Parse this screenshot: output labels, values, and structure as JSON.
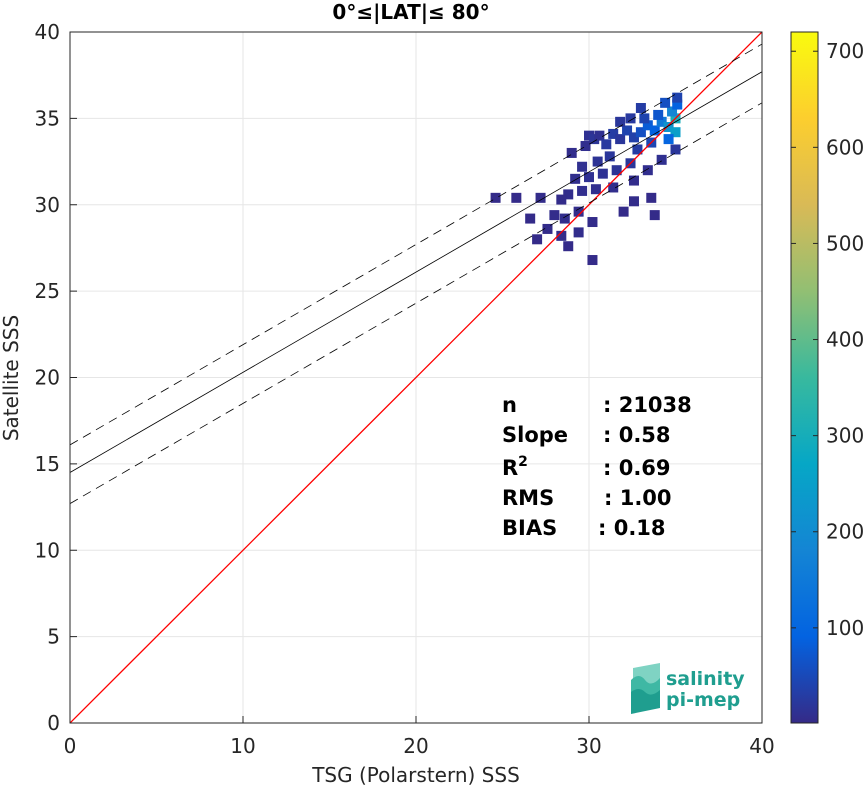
{
  "chart_data": {
    "type": "scatter",
    "title": "0°≤|LAT|≤ 80°",
    "xlabel": "TSG (Polarstern) SSS",
    "ylabel": "Satellite SSS",
    "xlim": [
      0,
      40
    ],
    "ylim": [
      0,
      40
    ],
    "xticks": [
      0,
      10,
      20,
      30,
      40
    ],
    "yticks": [
      0,
      5,
      10,
      15,
      20,
      25,
      30,
      35,
      40
    ],
    "grid": true,
    "colorbar": {
      "ticks": [
        100,
        200,
        300,
        400,
        500,
        600,
        700
      ],
      "range": [
        1,
        720
      ],
      "colormap": "parula",
      "colors": [
        "#352a87",
        "#0363e1",
        "#1485d4",
        "#06a7c6",
        "#38b99e",
        "#92bf73",
        "#d9ba56",
        "#fcce2e",
        "#f9fb0e"
      ]
    },
    "lines": [
      {
        "name": "1:1",
        "slope": 1,
        "intercept": 0,
        "color": "#ff0000",
        "style": "solid"
      },
      {
        "name": "fit",
        "slope": 0.58,
        "intercept": 14.5,
        "color": "#000000",
        "style": "solid"
      },
      {
        "name": "fit+",
        "slope": 0.58,
        "intercept": 16.1,
        "color": "#000000",
        "style": "dashed"
      },
      {
        "name": "fit-",
        "slope": 0.58,
        "intercept": 12.7,
        "color": "#000000",
        "style": "dashed"
      }
    ],
    "density_cells": [
      {
        "x": 30.0,
        "y": 34.0,
        "v": 12
      },
      {
        "x": 30.3,
        "y": 33.8,
        "v": 18
      },
      {
        "x": 30.6,
        "y": 34.0,
        "v": 10
      },
      {
        "x": 31.0,
        "y": 33.5,
        "v": 25
      },
      {
        "x": 31.4,
        "y": 34.1,
        "v": 30
      },
      {
        "x": 31.8,
        "y": 33.8,
        "v": 20
      },
      {
        "x": 32.2,
        "y": 34.3,
        "v": 40
      },
      {
        "x": 32.6,
        "y": 33.9,
        "v": 35
      },
      {
        "x": 33.0,
        "y": 34.2,
        "v": 60
      },
      {
        "x": 33.4,
        "y": 34.6,
        "v": 80
      },
      {
        "x": 33.8,
        "y": 34.3,
        "v": 90
      },
      {
        "x": 34.2,
        "y": 34.8,
        "v": 150
      },
      {
        "x": 34.6,
        "y": 34.5,
        "v": 220
      },
      {
        "x": 35.0,
        "y": 35.0,
        "v": 300
      },
      {
        "x": 34.8,
        "y": 35.4,
        "v": 180
      },
      {
        "x": 35.1,
        "y": 35.8,
        "v": 90
      },
      {
        "x": 34.0,
        "y": 35.2,
        "v": 70
      },
      {
        "x": 33.2,
        "y": 35.0,
        "v": 40
      },
      {
        "x": 32.4,
        "y": 35.0,
        "v": 25
      },
      {
        "x": 35.0,
        "y": 34.2,
        "v": 250
      },
      {
        "x": 34.6,
        "y": 33.8,
        "v": 100
      },
      {
        "x": 33.6,
        "y": 33.6,
        "v": 45
      },
      {
        "x": 32.8,
        "y": 33.2,
        "v": 30
      },
      {
        "x": 31.2,
        "y": 32.8,
        "v": 20
      },
      {
        "x": 30.5,
        "y": 32.5,
        "v": 15
      },
      {
        "x": 29.6,
        "y": 32.2,
        "v": 10
      },
      {
        "x": 30.0,
        "y": 31.6,
        "v": 12
      },
      {
        "x": 30.8,
        "y": 31.8,
        "v": 14
      },
      {
        "x": 31.6,
        "y": 32.0,
        "v": 16
      },
      {
        "x": 32.4,
        "y": 32.4,
        "v": 20
      },
      {
        "x": 29.2,
        "y": 31.5,
        "v": 8
      },
      {
        "x": 28.8,
        "y": 30.6,
        "v": 6
      },
      {
        "x": 29.6,
        "y": 30.8,
        "v": 8
      },
      {
        "x": 30.4,
        "y": 30.9,
        "v": 9
      },
      {
        "x": 31.4,
        "y": 31.0,
        "v": 7
      },
      {
        "x": 32.6,
        "y": 31.4,
        "v": 6
      },
      {
        "x": 33.4,
        "y": 32.0,
        "v": 8
      },
      {
        "x": 34.2,
        "y": 32.6,
        "v": 10
      },
      {
        "x": 35.0,
        "y": 33.2,
        "v": 20
      },
      {
        "x": 28.0,
        "y": 29.4,
        "v": 5
      },
      {
        "x": 28.6,
        "y": 29.2,
        "v": 6
      },
      {
        "x": 29.4,
        "y": 29.6,
        "v": 5
      },
      {
        "x": 27.6,
        "y": 28.6,
        "v": 4
      },
      {
        "x": 28.4,
        "y": 28.2,
        "v": 5
      },
      {
        "x": 29.4,
        "y": 28.4,
        "v": 6
      },
      {
        "x": 30.2,
        "y": 29.0,
        "v": 4
      },
      {
        "x": 26.6,
        "y": 29.2,
        "v": 3
      },
      {
        "x": 27.0,
        "y": 28.0,
        "v": 3
      },
      {
        "x": 24.6,
        "y": 30.4,
        "v": 3
      },
      {
        "x": 25.8,
        "y": 30.4,
        "v": 3
      },
      {
        "x": 27.2,
        "y": 30.4,
        "v": 4
      },
      {
        "x": 28.4,
        "y": 30.3,
        "v": 4
      },
      {
        "x": 32.6,
        "y": 30.2,
        "v": 4
      },
      {
        "x": 33.6,
        "y": 30.4,
        "v": 3
      },
      {
        "x": 28.8,
        "y": 27.6,
        "v": 3
      },
      {
        "x": 30.2,
        "y": 26.8,
        "v": 3
      },
      {
        "x": 33.8,
        "y": 29.4,
        "v": 3
      },
      {
        "x": 32.0,
        "y": 29.6,
        "v": 3
      },
      {
        "x": 29.0,
        "y": 33.0,
        "v": 6
      },
      {
        "x": 29.8,
        "y": 33.4,
        "v": 8
      },
      {
        "x": 31.8,
        "y": 34.8,
        "v": 20
      },
      {
        "x": 33.0,
        "y": 35.6,
        "v": 30
      },
      {
        "x": 34.4,
        "y": 35.9,
        "v": 60
      },
      {
        "x": 35.1,
        "y": 36.2,
        "v": 40
      }
    ],
    "stats": [
      {
        "label": "n",
        "value": ": 21038"
      },
      {
        "label": "Slope",
        "value": ": 0.58"
      },
      {
        "label": "R",
        "sup": "2",
        "value": ": 0.69"
      },
      {
        "label": "RMS",
        "value": ": 1.00"
      },
      {
        "label": "BIAS",
        "value": ": 0.18"
      }
    ]
  },
  "logo": {
    "line1": "salinity",
    "line2": "pi-mep"
  }
}
